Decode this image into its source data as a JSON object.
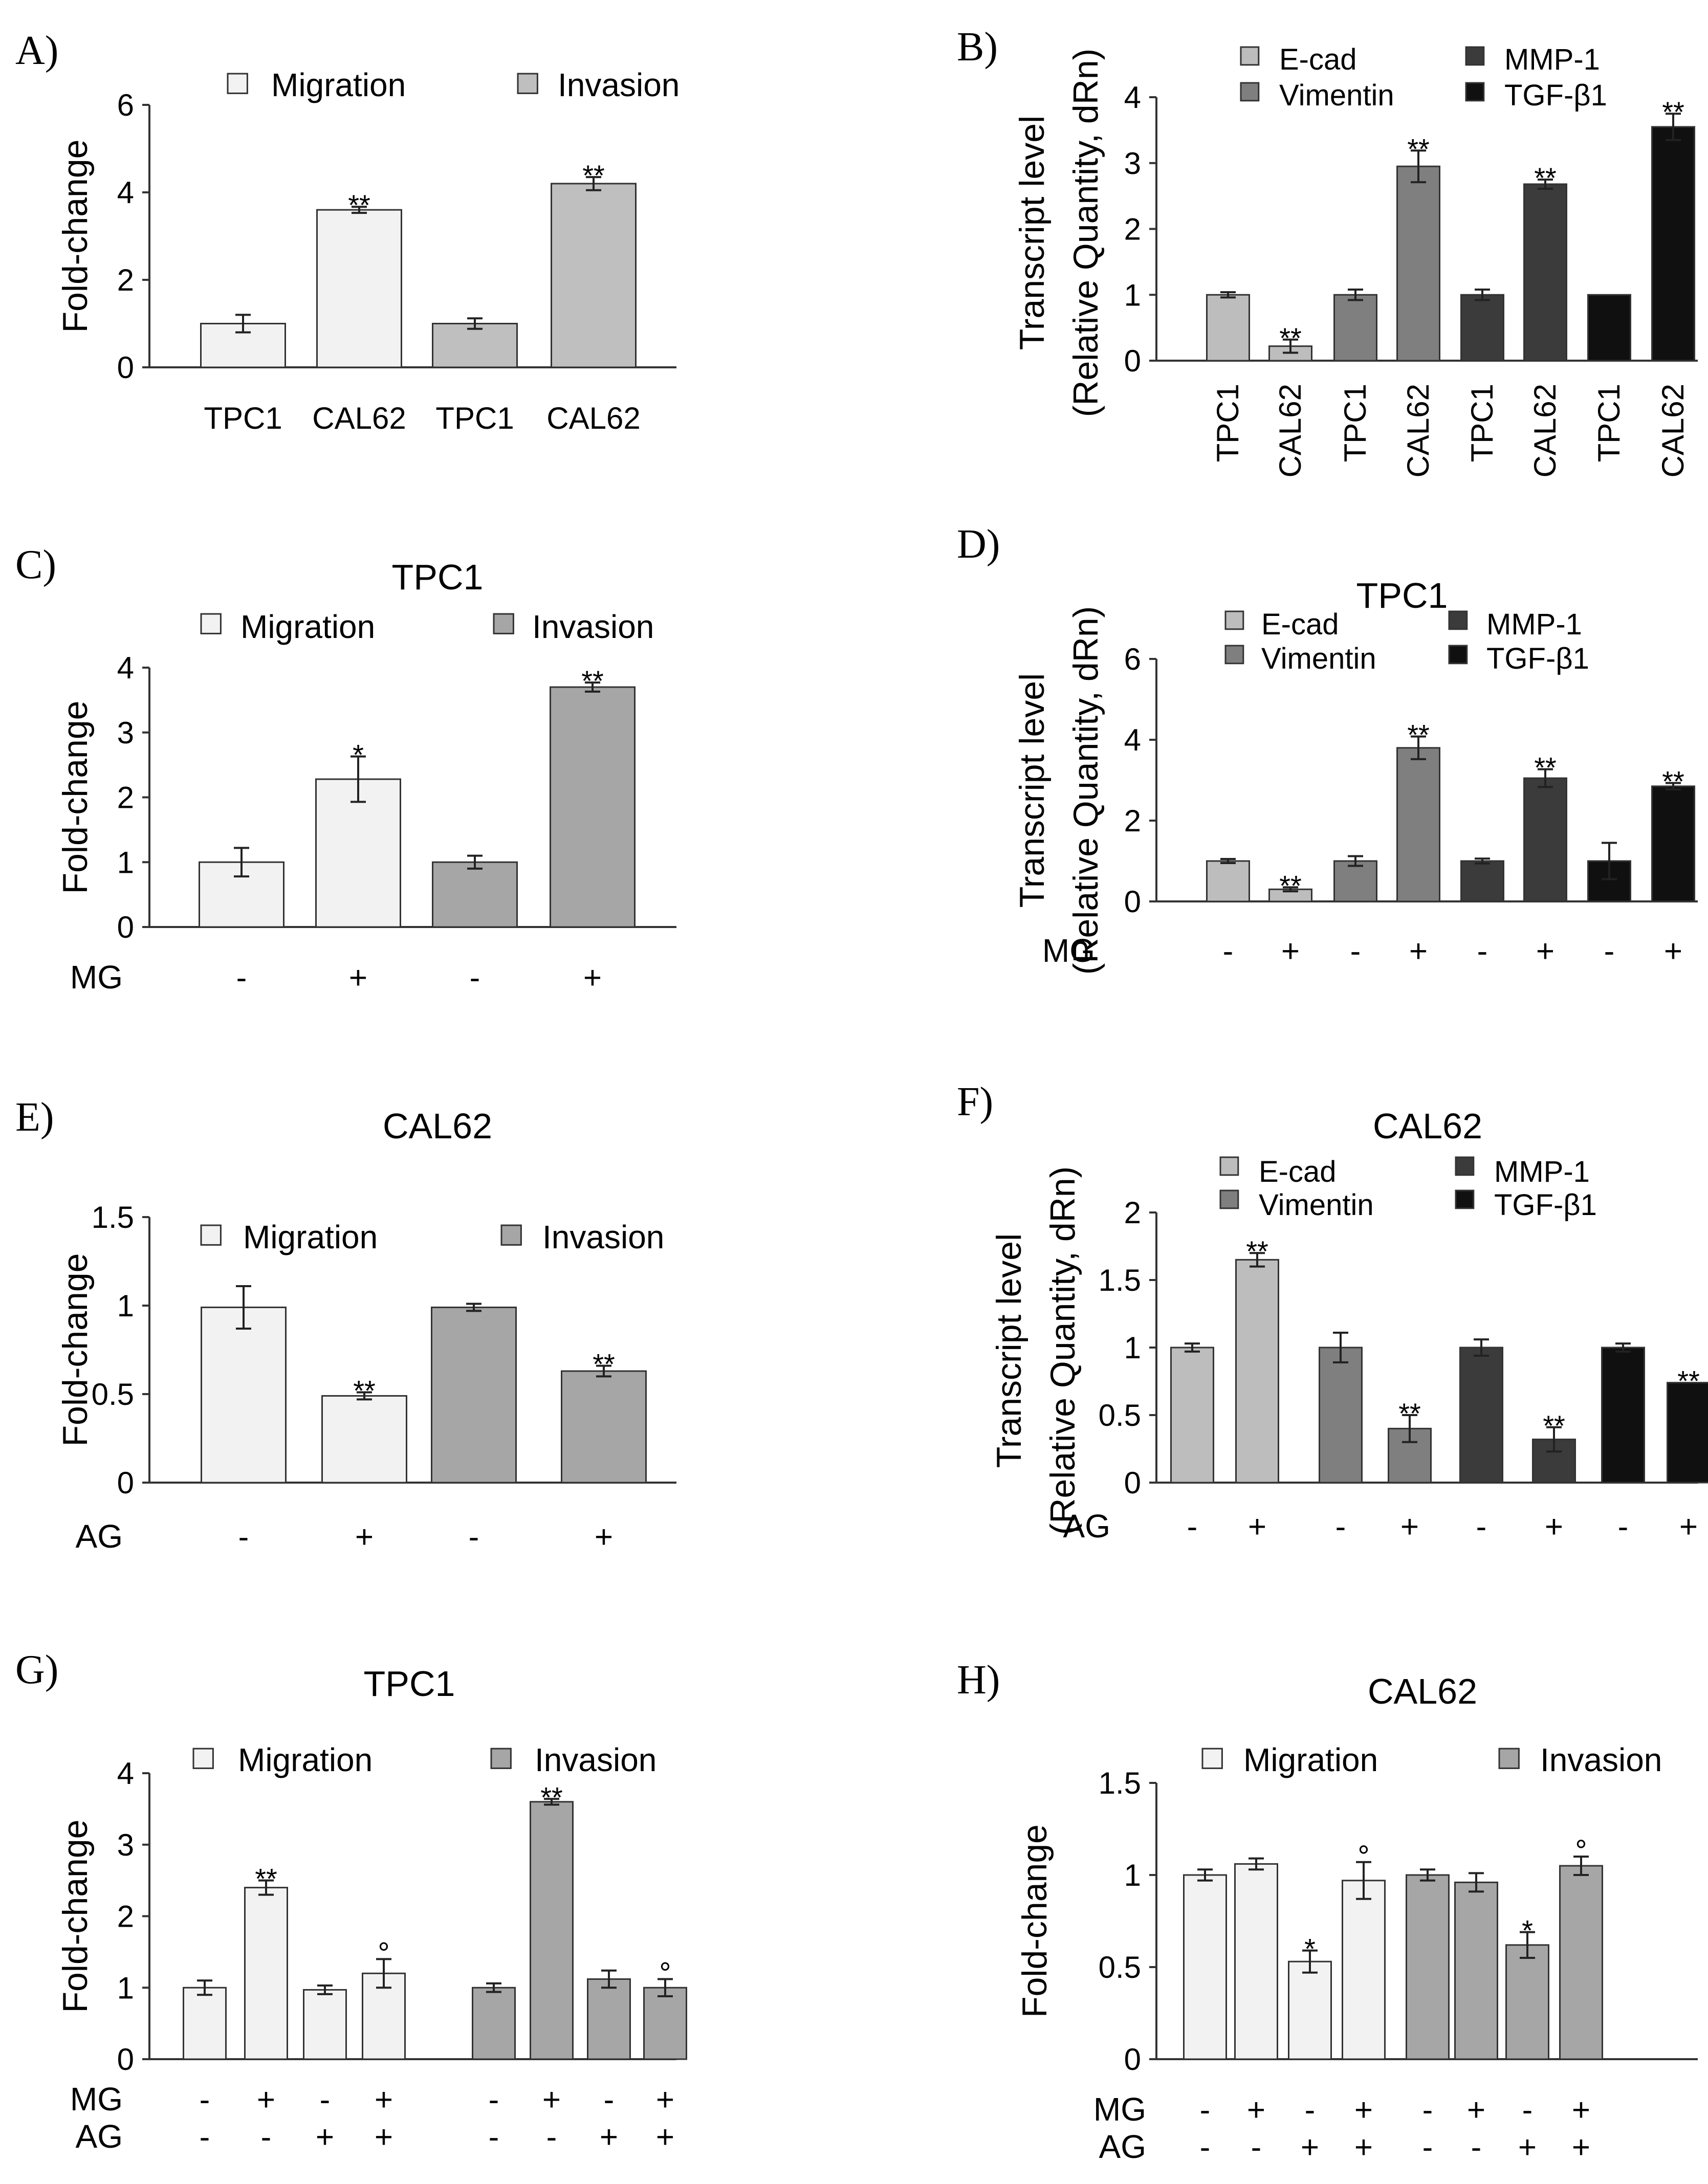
{
  "chart_data": [
    {
      "panel": "A)",
      "type": "bar",
      "title": "",
      "ylabel": "Fold-change",
      "ylim": [
        0,
        6
      ],
      "yticks": [
        0,
        2,
        4,
        6
      ],
      "legend": [
        {
          "name": "Migration",
          "color": "#f2f2f2"
        },
        {
          "name": "Invasion",
          "color": "#bfbfbf"
        }
      ],
      "categories": [
        "TPC1",
        "CAL62",
        "TPC1",
        "CAL62"
      ],
      "bars": [
        {
          "series": 0,
          "value": 1.0,
          "err": 0.2,
          "sig": ""
        },
        {
          "series": 0,
          "value": 3.6,
          "err": 0.07,
          "sig": "**"
        },
        {
          "series": 1,
          "value": 1.0,
          "err": 0.12,
          "sig": ""
        },
        {
          "series": 1,
          "value": 4.2,
          "err": 0.15,
          "sig": "**"
        }
      ]
    },
    {
      "panel": "B)",
      "type": "bar",
      "title": "",
      "ylabel": [
        "Transcript level",
        "(Relative Quantity,  dRn)"
      ],
      "ylim": [
        0,
        4
      ],
      "yticks": [
        0,
        1,
        2,
        3,
        4
      ],
      "legend": [
        {
          "name": "E-cad",
          "color": "#bdbdbd"
        },
        {
          "name": "Vimentin",
          "color": "#7f7f7f"
        },
        {
          "name": "MMP-1",
          "color": "#3b3b3b"
        },
        {
          "name": "TGF-β1",
          "color": "#101010"
        }
      ],
      "categories": [
        "TPC1",
        "CAL62",
        "TPC1",
        "CAL62",
        "TPC1",
        "CAL62",
        "TPC1",
        "CAL62"
      ],
      "bars": [
        {
          "series": 0,
          "value": 1.0,
          "err": 0.04,
          "sig": ""
        },
        {
          "series": 0,
          "value": 0.22,
          "err": 0.1,
          "sig": "**"
        },
        {
          "series": 1,
          "value": 1.0,
          "err": 0.08,
          "sig": ""
        },
        {
          "series": 1,
          "value": 2.95,
          "err": 0.24,
          "sig": "**"
        },
        {
          "series": 2,
          "value": 1.0,
          "err": 0.08,
          "sig": ""
        },
        {
          "series": 2,
          "value": 2.68,
          "err": 0.07,
          "sig": "**"
        },
        {
          "series": 3,
          "value": 1.0,
          "err": 0.0,
          "sig": ""
        },
        {
          "series": 3,
          "value": 3.55,
          "err": 0.2,
          "sig": "**"
        }
      ]
    },
    {
      "panel": "C)",
      "type": "bar",
      "title": "TPC1",
      "ylabel": "Fold-change",
      "ylim": [
        0,
        4
      ],
      "yticks": [
        0,
        1,
        2,
        3,
        4
      ],
      "legend": [
        {
          "name": "Migration",
          "color": "#f2f2f2"
        },
        {
          "name": "Invasion",
          "color": "#a6a6a6"
        }
      ],
      "treatments": [
        {
          "label": "MG",
          "values": [
            "-",
            "+",
            "-",
            "+"
          ]
        }
      ],
      "bars": [
        {
          "series": 0,
          "value": 1.0,
          "err": 0.22,
          "sig": ""
        },
        {
          "series": 0,
          "value": 2.28,
          "err": 0.35,
          "sig": "*"
        },
        {
          "series": 1,
          "value": 1.0,
          "err": 0.1,
          "sig": ""
        },
        {
          "series": 1,
          "value": 3.7,
          "err": 0.07,
          "sig": "**"
        }
      ]
    },
    {
      "panel": "D)",
      "type": "bar",
      "title": "TPC1",
      "ylabel": [
        "Transcript level",
        "(Relative Quantity,  dRn)"
      ],
      "ylim": [
        0,
        6
      ],
      "yticks": [
        0,
        2,
        4,
        6
      ],
      "legend": [
        {
          "name": "E-cad",
          "color": "#bdbdbd"
        },
        {
          "name": "Vimentin",
          "color": "#7f7f7f"
        },
        {
          "name": "MMP-1",
          "color": "#3b3b3b"
        },
        {
          "name": "TGF-β1",
          "color": "#101010"
        }
      ],
      "treatments": [
        {
          "label": "MG",
          "values": [
            "-",
            "+",
            "-",
            "+",
            "-",
            "+",
            "-",
            "+"
          ]
        }
      ],
      "bars": [
        {
          "series": 0,
          "value": 1.0,
          "err": 0.05,
          "sig": ""
        },
        {
          "series": 0,
          "value": 0.3,
          "err": 0.05,
          "sig": "**"
        },
        {
          "series": 1,
          "value": 1.0,
          "err": 0.12,
          "sig": ""
        },
        {
          "series": 1,
          "value": 3.8,
          "err": 0.28,
          "sig": "**"
        },
        {
          "series": 2,
          "value": 1.0,
          "err": 0.06,
          "sig": ""
        },
        {
          "series": 2,
          "value": 3.05,
          "err": 0.22,
          "sig": "**"
        },
        {
          "series": 3,
          "value": 1.0,
          "err": 0.45,
          "sig": ""
        },
        {
          "series": 3,
          "value": 2.85,
          "err": 0.08,
          "sig": "**"
        }
      ]
    },
    {
      "panel": "E)",
      "type": "bar",
      "title": "CAL62",
      "ylabel": "Fold-change",
      "ylim": [
        0,
        1.5
      ],
      "yticks": [
        0,
        0.5,
        1,
        1.5
      ],
      "legend": [
        {
          "name": "Migration",
          "color": "#f2f2f2"
        },
        {
          "name": "Invasion",
          "color": "#a6a6a6"
        }
      ],
      "treatments": [
        {
          "label": "AG",
          "values": [
            "-",
            "+",
            "-",
            "+"
          ]
        }
      ],
      "bars": [
        {
          "series": 0,
          "value": 0.99,
          "err": 0.12,
          "sig": ""
        },
        {
          "series": 0,
          "value": 0.49,
          "err": 0.02,
          "sig": "**"
        },
        {
          "series": 1,
          "value": 0.99,
          "err": 0.02,
          "sig": ""
        },
        {
          "series": 1,
          "value": 0.63,
          "err": 0.03,
          "sig": "**"
        }
      ]
    },
    {
      "panel": "F)",
      "type": "bar",
      "title": "CAL62",
      "ylabel": [
        "Transcript level",
        "(Relative Quantity,  dRn)"
      ],
      "ylim": [
        0,
        2
      ],
      "yticks": [
        0,
        0.5,
        1,
        1.5,
        2
      ],
      "legend": [
        {
          "name": "E-cad",
          "color": "#bdbdbd"
        },
        {
          "name": "Vimentin",
          "color": "#7f7f7f"
        },
        {
          "name": "MMP-1",
          "color": "#3b3b3b"
        },
        {
          "name": "TGF-β1",
          "color": "#101010"
        }
      ],
      "treatments": [
        {
          "label": "AG",
          "values": [
            "-",
            "+",
            "-",
            "+",
            "-",
            "+",
            "-",
            "+"
          ]
        }
      ],
      "bars": [
        {
          "series": 0,
          "value": 1.0,
          "err": 0.03,
          "sig": ""
        },
        {
          "series": 0,
          "value": 1.65,
          "err": 0.05,
          "sig": "**"
        },
        {
          "series": 1,
          "value": 1.0,
          "err": 0.11,
          "sig": ""
        },
        {
          "series": 1,
          "value": 0.4,
          "err": 0.1,
          "sig": "**"
        },
        {
          "series": 2,
          "value": 1.0,
          "err": 0.06,
          "sig": ""
        },
        {
          "series": 2,
          "value": 0.32,
          "err": 0.09,
          "sig": "**"
        },
        {
          "series": 3,
          "value": 1.0,
          "err": 0.03,
          "sig": ""
        },
        {
          "series": 3,
          "value": 0.74,
          "err": 0.0,
          "sig": "**"
        }
      ]
    },
    {
      "panel": "G)",
      "type": "bar",
      "title": "TPC1",
      "ylabel": "Fold-change",
      "ylim": [
        0,
        4
      ],
      "yticks": [
        0,
        1,
        2,
        3,
        4
      ],
      "legend": [
        {
          "name": "Migration",
          "color": "#f2f2f2"
        },
        {
          "name": "Invasion",
          "color": "#a6a6a6"
        }
      ],
      "treatments": [
        {
          "label": "MG",
          "values": [
            "-",
            "+",
            "-",
            "+",
            "-",
            "+",
            "-",
            "+"
          ]
        },
        {
          "label": "AG",
          "values": [
            "-",
            "-",
            "+",
            "+",
            "-",
            "-",
            "+",
            "+"
          ]
        }
      ],
      "bars": [
        {
          "series": 0,
          "value": 1.0,
          "err": 0.1,
          "sig": ""
        },
        {
          "series": 0,
          "value": 2.4,
          "err": 0.1,
          "sig": "**"
        },
        {
          "series": 0,
          "value": 0.97,
          "err": 0.06,
          "sig": ""
        },
        {
          "series": 0,
          "value": 1.2,
          "err": 0.2,
          "sig": "°"
        },
        {
          "series": 1,
          "value": 1.0,
          "err": 0.06,
          "sig": ""
        },
        {
          "series": 1,
          "value": 3.6,
          "err": 0.04,
          "sig": "**"
        },
        {
          "series": 1,
          "value": 1.12,
          "err": 0.12,
          "sig": ""
        },
        {
          "series": 1,
          "value": 1.0,
          "err": 0.12,
          "sig": "°"
        }
      ]
    },
    {
      "panel": "H)",
      "type": "bar",
      "title": "CAL62",
      "ylabel": "Fold-change",
      "ylim": [
        0,
        1.5
      ],
      "yticks": [
        0,
        0.5,
        1,
        1.5
      ],
      "legend": [
        {
          "name": "Migration",
          "color": "#f2f2f2"
        },
        {
          "name": "Invasion",
          "color": "#a6a6a6"
        }
      ],
      "treatments": [
        {
          "label": "MG",
          "values": [
            "-",
            "+",
            "-",
            "+",
            "-",
            "+",
            "-",
            "+"
          ]
        },
        {
          "label": "AG",
          "values": [
            "-",
            "-",
            "+",
            "+",
            "-",
            "-",
            "+",
            "+"
          ]
        }
      ],
      "bars": [
        {
          "series": 0,
          "value": 1.0,
          "err": 0.03,
          "sig": ""
        },
        {
          "series": 0,
          "value": 1.06,
          "err": 0.03,
          "sig": ""
        },
        {
          "series": 0,
          "value": 0.53,
          "err": 0.06,
          "sig": "*"
        },
        {
          "series": 0,
          "value": 0.97,
          "err": 0.1,
          "sig": "°"
        },
        {
          "series": 1,
          "value": 1.0,
          "err": 0.03,
          "sig": ""
        },
        {
          "series": 1,
          "value": 0.96,
          "err": 0.05,
          "sig": ""
        },
        {
          "series": 1,
          "value": 0.62,
          "err": 0.07,
          "sig": "*"
        },
        {
          "series": 1,
          "value": 1.05,
          "err": 0.05,
          "sig": "°"
        }
      ]
    }
  ]
}
